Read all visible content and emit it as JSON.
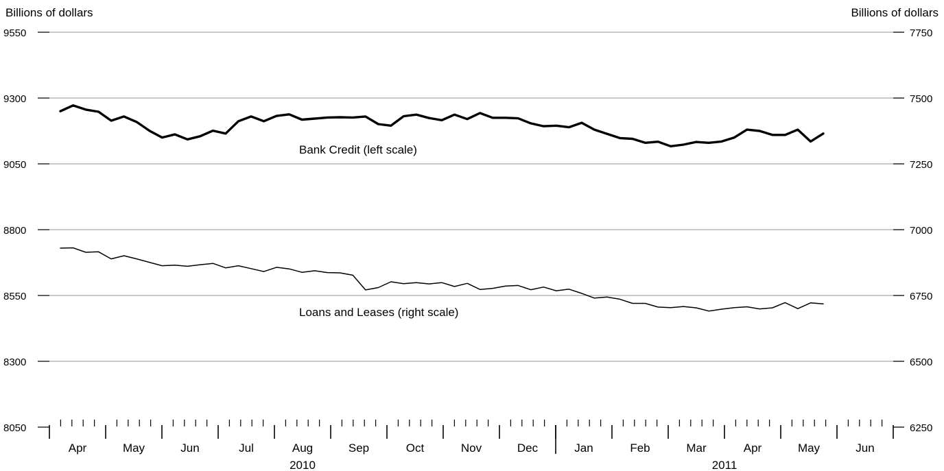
{
  "chart_data": {
    "type": "line",
    "left_axis": {
      "label": "Billions of dollars",
      "ticks": [
        "9550",
        "9300",
        "9050",
        "8800",
        "8550",
        "8300",
        "8050"
      ],
      "range": [
        8050,
        9550
      ]
    },
    "right_axis": {
      "label": "Billions of dollars",
      "ticks": [
        "7750",
        "7500",
        "7250",
        "7000",
        "6750",
        "6500",
        "6250"
      ],
      "range": [
        6250,
        7750
      ]
    },
    "grid": true,
    "months": [
      "Apr",
      "May",
      "Jun",
      "Jul",
      "Aug",
      "Sep",
      "Oct",
      "Nov",
      "Dec",
      "Jan",
      "Feb",
      "Mar",
      "Apr",
      "May",
      "Jun"
    ],
    "years": [
      {
        "label": "2010",
        "start_month": 0,
        "end_month": 9
      },
      {
        "label": "2011",
        "start_month": 9,
        "end_month": 15
      }
    ],
    "series": [
      {
        "name": "Bank Credit (left scale)",
        "axis": "left",
        "line_width": "thick",
        "values": [
          9250,
          9272,
          9256,
          9248,
          9214,
          9230,
          9209,
          9176,
          9150,
          9162,
          9143,
          9155,
          9176,
          9165,
          9212,
          9230,
          9212,
          9232,
          9238,
          9218,
          9222,
          9226,
          9227,
          9226,
          9230,
          9201,
          9195,
          9231,
          9237,
          9224,
          9216,
          9237,
          9220,
          9243,
          9225,
          9225,
          9223,
          9204,
          9193,
          9195,
          9189,
          9206,
          9180,
          9164,
          9148,
          9145,
          9130,
          9134,
          9117,
          9123,
          9133,
          9130,
          9135,
          9150,
          9180,
          9175,
          9160,
          9160,
          9180,
          9135,
          9165
        ]
      },
      {
        "name": "Loans and Leases (right scale)",
        "axis": "right",
        "line_width": "thin",
        "values": [
          6930,
          6931,
          6914,
          6916,
          6889,
          6901,
          6889,
          6876,
          6863,
          6865,
          6861,
          6867,
          6872,
          6855,
          6863,
          6852,
          6841,
          6857,
          6851,
          6838,
          6844,
          6837,
          6836,
          6827,
          6771,
          6780,
          6802,
          6795,
          6799,
          6794,
          6799,
          6784,
          6796,
          6773,
          6777,
          6786,
          6788,
          6772,
          6782,
          6768,
          6774,
          6758,
          6740,
          6744,
          6736,
          6720,
          6720,
          6706,
          6704,
          6708,
          6703,
          6691,
          6698,
          6704,
          6707,
          6699,
          6703,
          6723,
          6700,
          6722,
          6718
        ]
      }
    ]
  }
}
